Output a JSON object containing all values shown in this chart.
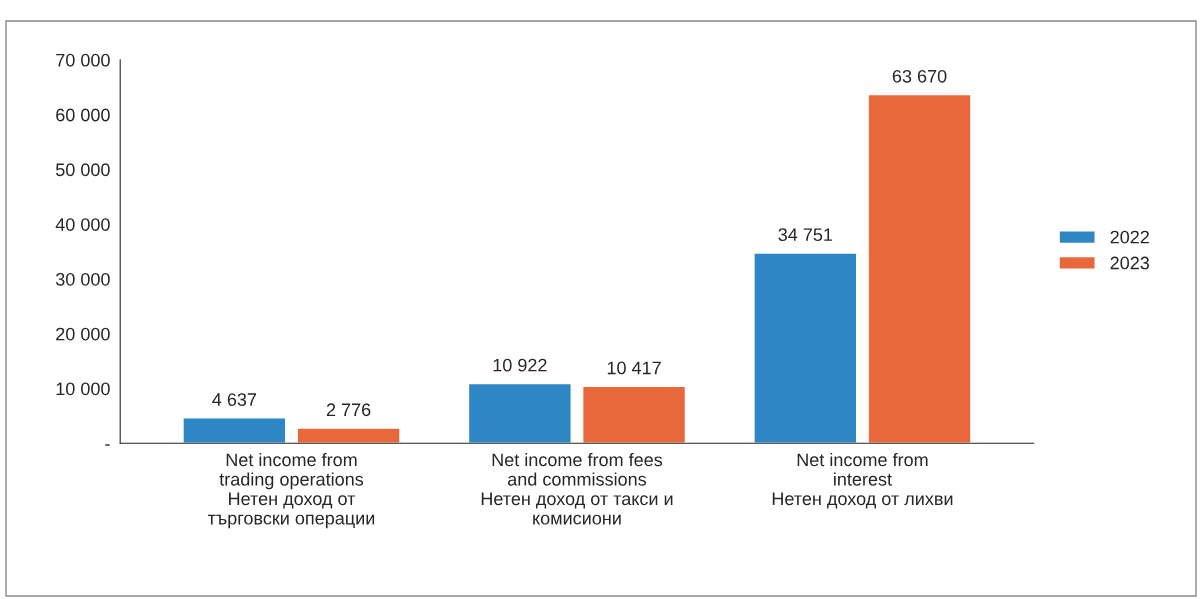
{
  "chart_data": {
    "type": "bar",
    "categories": [
      "Net income from\ntrading operations\nНетен доход от\nтърговски операции",
      "Net income from fees\nand commissions\nНетен доход от такси и\nкомисиони",
      "Net income from\ninterest\nНетен доход от лихви"
    ],
    "series": [
      {
        "name": "2022",
        "color": "#2f86c4",
        "values": [
          4637,
          10922,
          34751
        ],
        "value_labels": [
          "4 637",
          "10 922",
          "34 751"
        ]
      },
      {
        "name": "2023",
        "color": "#e8683c",
        "values": [
          2776,
          10417,
          63670
        ],
        "value_labels": [
          "2 776",
          "10 417",
          "63 670"
        ]
      }
    ],
    "ylim": [
      0,
      70000
    ],
    "yticks": [
      {
        "value": 0,
        "label": "-"
      },
      {
        "value": 10000,
        "label": "10 000"
      },
      {
        "value": 20000,
        "label": "20 000"
      },
      {
        "value": 30000,
        "label": "30 000"
      },
      {
        "value": 40000,
        "label": "40 000"
      },
      {
        "value": 50000,
        "label": "50 000"
      },
      {
        "value": 60000,
        "label": "60 000"
      },
      {
        "value": 70000,
        "label": "70 000"
      }
    ],
    "legend": "right",
    "grid": false
  }
}
